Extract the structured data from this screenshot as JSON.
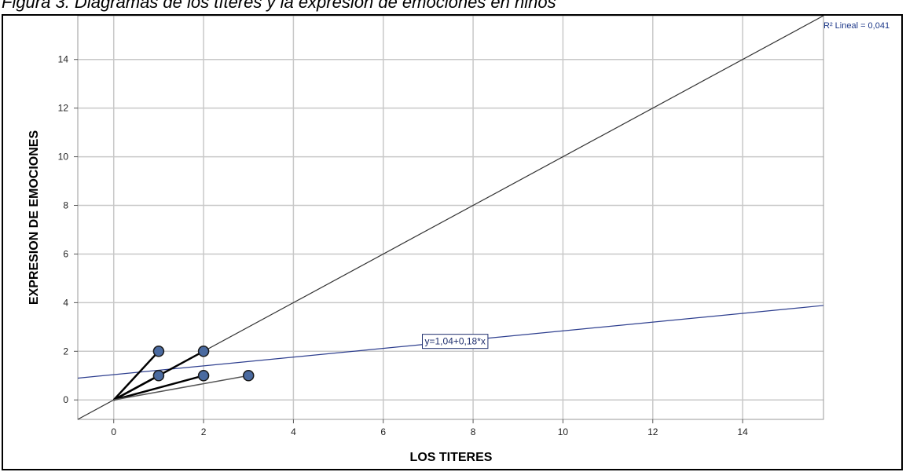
{
  "caption": "Figura 3. Diagramas de los títeres y la expresión de emociones en niños",
  "chart_data": {
    "type": "scatter",
    "title": "Figura 3. Diagramas de los títeres y la expresión de emociones en niños",
    "xlabel": "LOS TITERES",
    "ylabel": "EXPRESION DE EMOCIONES",
    "xlim": [
      -0.8,
      15.8
    ],
    "ylim": [
      -0.8,
      15.8
    ],
    "xticks": [
      0,
      2,
      4,
      6,
      8,
      10,
      12,
      14
    ],
    "yticks": [
      0,
      2,
      4,
      6,
      8,
      10,
      12,
      14
    ],
    "grid": true,
    "points": [
      {
        "x": 1,
        "y": 2
      },
      {
        "x": 2,
        "y": 2
      },
      {
        "x": 1,
        "y": 1
      },
      {
        "x": 2,
        "y": 1
      },
      {
        "x": 3,
        "y": 1
      }
    ],
    "spoke_origin": {
      "x": 0,
      "y": 0
    },
    "reference_line": {
      "intercept": 0,
      "slope": 1
    },
    "fit_line": {
      "intercept": 1.04,
      "slope": 0.18,
      "equation": "y=1,04+0,18*x",
      "equation_x": 7.6
    },
    "r_squared_label": "R² Lineal = 0,041",
    "colors": {
      "grid": "#c8c8c8",
      "reference_line": "#333333",
      "fit_line": "#2e3f8f",
      "marker_fill": "#4a6aa0",
      "marker_stroke": "#1a1a1a",
      "spoke": "#000000",
      "spoke_light": "#555555"
    }
  }
}
